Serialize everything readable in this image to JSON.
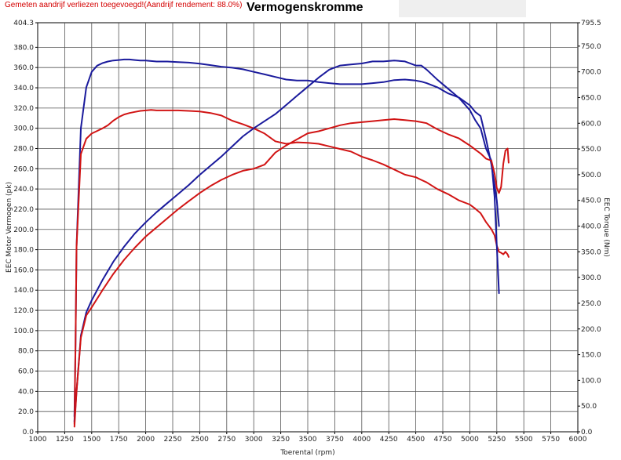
{
  "header": {
    "note": "Gemeten aandrijf verliezen toegevoegd!(Aandrijf rendement: 88.0%)",
    "title": "Vermogenskromme"
  },
  "chart_data": {
    "type": "line",
    "title": "Vermogenskromme",
    "xlabel": "Toerental (rpm)",
    "ylabel_left": "EEC Motor Vermogen (pk)",
    "ylabel_right": "EEC Torque (Nm)",
    "xlim": [
      1000,
      6000
    ],
    "ylim_left": [
      0,
      404.3
    ],
    "ylim_right": [
      0,
      795.5
    ],
    "x_ticks": [
      "1000",
      "1250",
      "1500",
      "1750",
      "2000",
      "2250",
      "2500",
      "2750",
      "3000",
      "3250",
      "3500",
      "3750",
      "4000",
      "4250",
      "4500",
      "4750",
      "5000",
      "5250",
      "5500",
      "5750",
      "6000"
    ],
    "y_left_ticks": [
      "0.0",
      "20.0",
      "40.0",
      "60.0",
      "80.0",
      "100.0",
      "120.0",
      "140.0",
      "160.0",
      "180.0",
      "200.0",
      "220.0",
      "240.0",
      "260.0",
      "280.0",
      "300.0",
      "320.0",
      "340.0",
      "360.0",
      "380.0",
      "404.3"
    ],
    "y_right_ticks": [
      "0.0",
      "50.0",
      "100.0",
      "150.0",
      "200.0",
      "250.0",
      "300.0",
      "350.0",
      "400.0",
      "450.0",
      "500.0",
      "550.0",
      "600.0",
      "650.0",
      "700.0",
      "750.0",
      "795.5"
    ],
    "grid": true,
    "series": [
      {
        "axis": "right",
        "color": "#1a1a9c",
        "x": [
          1340,
          1350,
          1360,
          1400,
          1450,
          1500,
          1550,
          1600,
          1650,
          1700,
          1750,
          1800,
          1850,
          1900,
          1950,
          2000,
          2050,
          2100,
          2200,
          2300,
          2400,
          2500,
          2600,
          2700,
          2800,
          2900,
          3000,
          3100,
          3200,
          3300,
          3400,
          3500,
          3600,
          3700,
          3800,
          3900,
          4000,
          4100,
          4200,
          4300,
          4400,
          4500,
          4550,
          4600,
          4700,
          4800,
          4900,
          5000,
          5050,
          5100,
          5150,
          5200,
          5230,
          5250,
          5270
        ],
        "y": [
          30,
          170,
          360,
          590,
          670,
          700,
          712,
          717,
          720,
          722,
          723,
          724,
          724,
          723,
          722,
          722,
          721,
          720,
          720,
          719,
          718,
          716,
          713,
          710,
          708,
          705,
          700,
          695,
          690,
          685,
          683,
          683,
          680,
          678,
          676,
          676,
          676,
          678,
          680,
          684,
          685,
          683,
          681,
          678,
          670,
          658,
          650,
          635,
          622,
          614,
          570,
          520,
          480,
          450,
          400
        ]
      },
      {
        "axis": "right",
        "color": "#d11414",
        "x": [
          1340,
          1350,
          1360,
          1400,
          1450,
          1500,
          1550,
          1600,
          1650,
          1700,
          1750,
          1800,
          1850,
          1900,
          1950,
          2000,
          2050,
          2100,
          2200,
          2300,
          2400,
          2500,
          2600,
          2700,
          2800,
          2900,
          3000,
          3100,
          3200,
          3300,
          3400,
          3500,
          3600,
          3700,
          3800,
          3900,
          4000,
          4100,
          4200,
          4300,
          4400,
          4500,
          4550,
          4600,
          4700,
          4800,
          4900,
          5000,
          5050,
          5100,
          5150,
          5200,
          5230,
          5250,
          5270,
          5290,
          5310,
          5330,
          5350,
          5360
        ],
        "y": [
          15,
          170,
          360,
          540,
          570,
          580,
          585,
          590,
          596,
          605,
          612,
          617,
          620,
          622,
          624,
          625,
          626,
          625,
          625,
          625,
          624,
          623,
          620,
          615,
          605,
          598,
          590,
          580,
          565,
          560,
          563,
          562,
          560,
          555,
          550,
          545,
          535,
          528,
          520,
          510,
          500,
          495,
          490,
          485,
          472,
          462,
          450,
          442,
          434,
          425,
          408,
          394,
          382,
          362,
          350,
          348,
          345,
          350,
          345,
          340
        ]
      },
      {
        "axis": "left",
        "color": "#1a1a9c",
        "x": [
          1340,
          1360,
          1400,
          1450,
          1500,
          1600,
          1700,
          1800,
          1900,
          2000,
          2100,
          2200,
          2300,
          2400,
          2500,
          2600,
          2700,
          2800,
          2900,
          3000,
          3100,
          3200,
          3300,
          3400,
          3500,
          3600,
          3700,
          3800,
          3900,
          4000,
          4100,
          4200,
          4300,
          4400,
          4500,
          4550,
          4600,
          4700,
          4800,
          4900,
          5000,
          5050,
          5100,
          5150,
          5200,
          5230,
          5250,
          5270
        ],
        "y": [
          10,
          40,
          95,
          118,
          130,
          150,
          168,
          183,
          196,
          207,
          217,
          226,
          235,
          244,
          254,
          263,
          272,
          282,
          292,
          300,
          307,
          314,
          323,
          332,
          341,
          350,
          358,
          362,
          363,
          364,
          366,
          366,
          367,
          366,
          362,
          362,
          358,
          348,
          339,
          330,
          318,
          308,
          300,
          280,
          268,
          232,
          184,
          137
        ]
      },
      {
        "axis": "left",
        "color": "#d11414",
        "x": [
          1340,
          1360,
          1400,
          1450,
          1500,
          1600,
          1700,
          1800,
          1900,
          2000,
          2100,
          2200,
          2300,
          2400,
          2500,
          2600,
          2700,
          2800,
          2900,
          3000,
          3100,
          3200,
          3300,
          3400,
          3500,
          3600,
          3700,
          3800,
          3900,
          4000,
          4100,
          4200,
          4300,
          4400,
          4500,
          4550,
          4600,
          4700,
          4800,
          4900,
          5000,
          5050,
          5100,
          5150,
          5200,
          5230,
          5250,
          5270,
          5290,
          5310,
          5330,
          5350,
          5360
        ],
        "y": [
          5,
          40,
          93,
          115,
          123,
          140,
          156,
          170,
          182,
          193,
          202,
          211,
          220,
          228,
          236,
          243,
          249,
          254,
          258,
          260,
          264,
          276,
          283,
          289,
          295,
          297,
          300,
          303,
          305,
          306,
          307,
          308,
          309,
          308,
          307,
          306,
          305,
          299,
          294,
          290,
          283,
          279,
          275,
          270,
          268,
          255,
          241,
          236,
          242,
          265,
          278,
          280,
          266
        ]
      }
    ]
  }
}
